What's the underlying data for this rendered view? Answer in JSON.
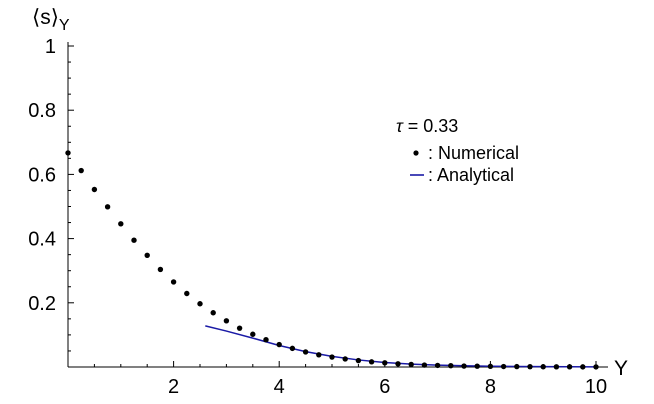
{
  "chart_data": {
    "type": "scatter",
    "title": "",
    "xlabel": "Y",
    "ylabel": "⟨s⟩",
    "ylabel_sub": "Y",
    "xlim": [
      0,
      10
    ],
    "ylim": [
      0,
      1
    ],
    "xticks": [
      2,
      4,
      6,
      8,
      10
    ],
    "yticks": [
      0.2,
      0.4,
      0.6,
      0.8,
      1
    ],
    "x_tick_labels": [
      "2",
      "4",
      "6",
      "8",
      "10"
    ],
    "y_tick_labels": [
      "0.2",
      "0.4",
      "0.6",
      "0.8",
      "1"
    ],
    "grid": false,
    "legend_position": "top-right",
    "annotation": {
      "symbol": "τ",
      "text": " = 0.33"
    },
    "series": [
      {
        "name": "Numerical",
        "legend_label": ": Numerical",
        "style": "points",
        "color": "#000000",
        "x": [
          0,
          0.25,
          0.5,
          0.75,
          1,
          1.25,
          1.5,
          1.75,
          2,
          2.25,
          2.5,
          2.75,
          3,
          3.25,
          3.5,
          3.75,
          4,
          4.25,
          4.5,
          4.75,
          5,
          5.25,
          5.5,
          5.75,
          6,
          6.25,
          6.5,
          6.75,
          7,
          7.25,
          7.5,
          7.75,
          8,
          8.25,
          8.5,
          8.75,
          9,
          9.25,
          9.5,
          9.75,
          10
        ],
        "y": [
          0.667,
          0.612,
          0.553,
          0.499,
          0.446,
          0.395,
          0.348,
          0.304,
          0.265,
          0.229,
          0.197,
          0.169,
          0.144,
          0.121,
          0.102,
          0.085,
          0.07,
          0.058,
          0.047,
          0.038,
          0.031,
          0.025,
          0.02,
          0.016,
          0.013,
          0.01,
          0.008,
          0.006,
          0.005,
          0.004,
          0.003,
          0.0025,
          0.002,
          0.0015,
          0.0012,
          0.001,
          0.0008,
          0.0006,
          0.0005,
          0.0004,
          0.0003
        ]
      },
      {
        "name": "Analytical",
        "legend_label": ": Analytical",
        "style": "line",
        "color": "#1a1aa6",
        "x": [
          2.6,
          3,
          3.5,
          4,
          4.5,
          5,
          5.5,
          6,
          6.5,
          7,
          7.5,
          8,
          8.5,
          9,
          9.5,
          10
        ],
        "y": [
          0.128,
          0.112,
          0.09,
          0.067,
          0.048,
          0.033,
          0.022,
          0.014,
          0.009,
          0.006,
          0.004,
          0.0025,
          0.0016,
          0.001,
          0.0006,
          0.0004
        ]
      }
    ]
  }
}
